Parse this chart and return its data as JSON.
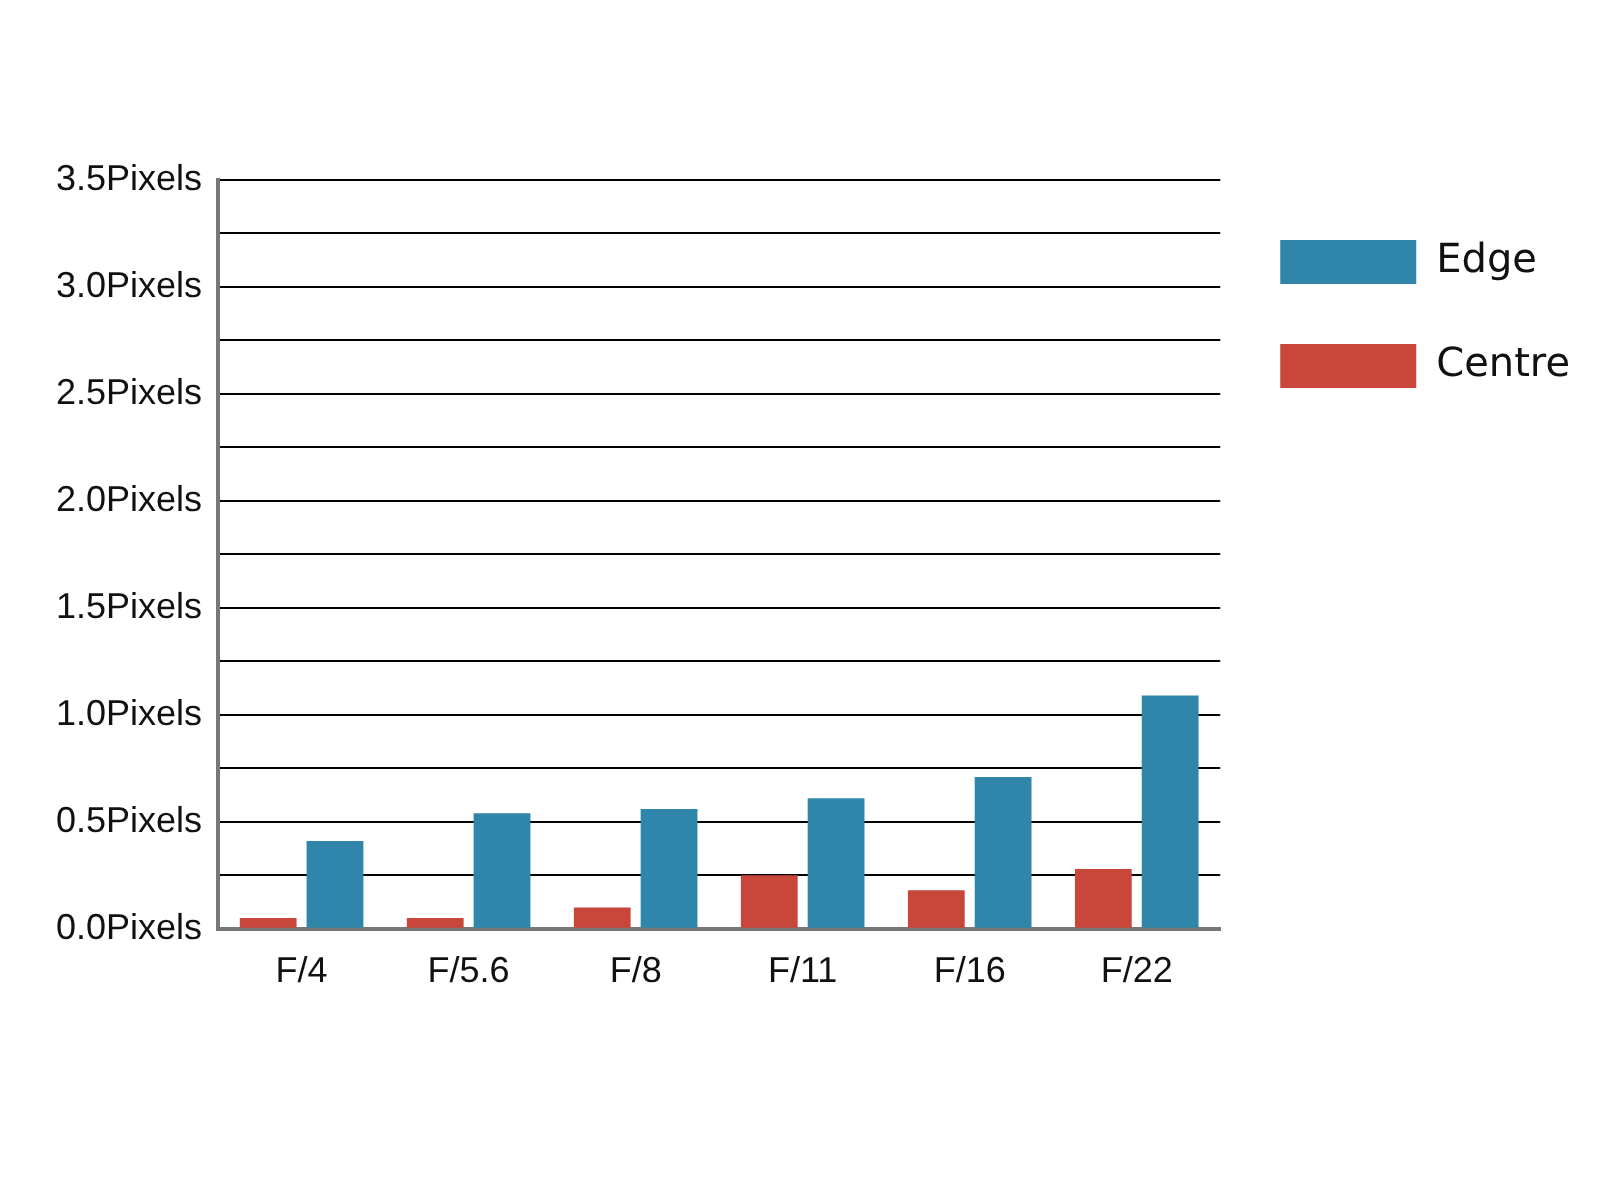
{
  "chart_data": {
    "type": "bar",
    "categories": [
      "F/4",
      "F/5.6",
      "F/8",
      "F/11",
      "F/16",
      "F/22"
    ],
    "series": [
      {
        "name": "Centre",
        "color": "#c8463a",
        "values": [
          0.05,
          0.05,
          0.1,
          0.25,
          0.18,
          0.28
        ]
      },
      {
        "name": "Edge",
        "color": "#2f86aa",
        "values": [
          0.41,
          0.54,
          0.56,
          0.61,
          0.71,
          1.09
        ]
      }
    ],
    "ylim": [
      0,
      3.5
    ],
    "yticks": [
      {
        "value": 0,
        "label": "0.0Pixels"
      },
      {
        "value": 0.25,
        "label": null
      },
      {
        "value": 0.5,
        "label": "0.5Pixels"
      },
      {
        "value": 0.75,
        "label": null
      },
      {
        "value": 1,
        "label": "1.0Pixels"
      },
      {
        "value": 1.25,
        "label": null
      },
      {
        "value": 1.5,
        "label": "1.5Pixels"
      },
      {
        "value": 1.75,
        "label": null
      },
      {
        "value": 2,
        "label": "2.0Pixels"
      },
      {
        "value": 2.25,
        "label": null
      },
      {
        "value": 2.5,
        "label": "2.5Pixels"
      },
      {
        "value": 2.75,
        "label": null
      },
      {
        "value": 3,
        "label": "3.0Pixels"
      },
      {
        "value": 3.25,
        "label": null
      },
      {
        "value": 3.5,
        "label": "3.5Pixels"
      }
    ],
    "grid": "y",
    "legend": "top right"
  }
}
